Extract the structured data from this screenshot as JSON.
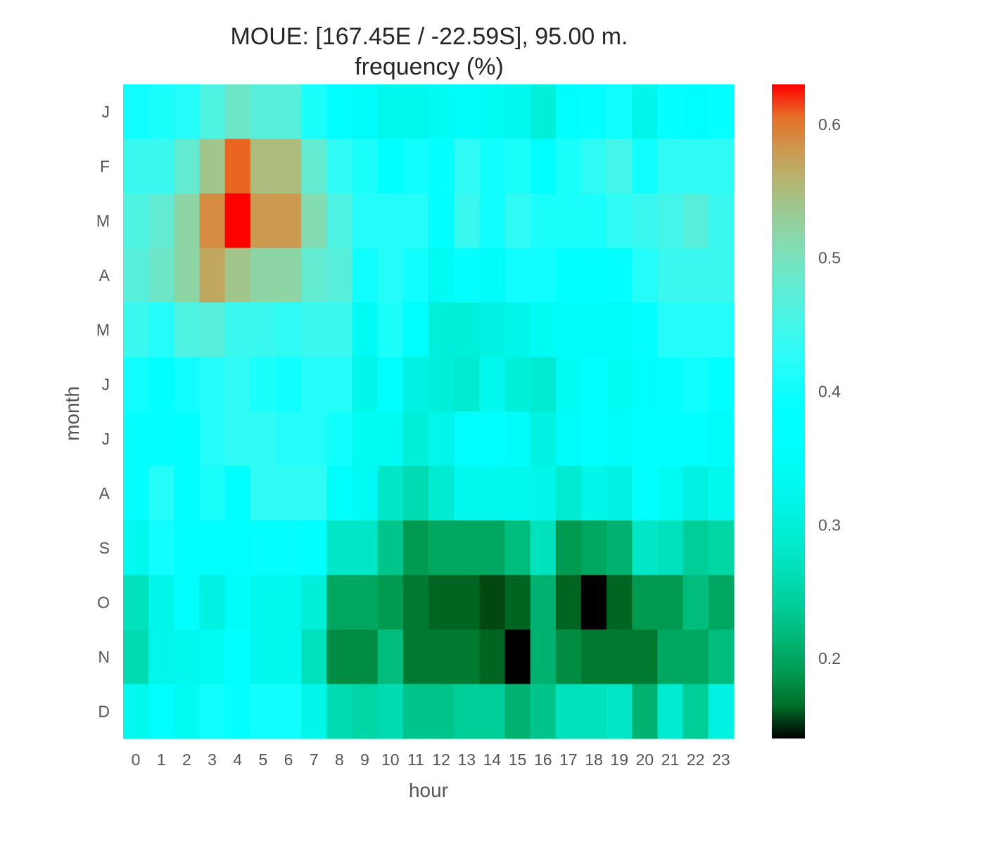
{
  "chart_data": {
    "type": "heatmap",
    "title": "MOUE: [167.45E / -22.59S], 95.00 m.",
    "subtitle": "frequency (%)",
    "xlabel": "hour",
    "ylabel": "month",
    "x": [
      "0",
      "1",
      "2",
      "3",
      "4",
      "5",
      "6",
      "7",
      "8",
      "9",
      "10",
      "11",
      "12",
      "13",
      "14",
      "15",
      "16",
      "17",
      "18",
      "19",
      "20",
      "21",
      "22",
      "23"
    ],
    "y": [
      "J",
      "F",
      "M",
      "A",
      "M",
      "J",
      "J",
      "A",
      "S",
      "O",
      "N",
      "D"
    ],
    "values": [
      [
        0.4,
        0.41,
        0.42,
        0.46,
        0.49,
        0.47,
        0.47,
        0.41,
        0.37,
        0.35,
        0.33,
        0.33,
        0.34,
        0.35,
        0.34,
        0.33,
        0.3,
        0.36,
        0.39,
        0.4,
        0.32,
        0.39,
        0.36,
        0.39
      ],
      [
        0.44,
        0.44,
        0.48,
        0.54,
        0.61,
        0.55,
        0.55,
        0.48,
        0.43,
        0.41,
        0.38,
        0.4,
        0.39,
        0.43,
        0.4,
        0.41,
        0.36,
        0.41,
        0.43,
        0.45,
        0.4,
        0.43,
        0.43,
        0.43
      ],
      [
        0.46,
        0.48,
        0.52,
        0.59,
        0.63,
        0.58,
        0.58,
        0.51,
        0.46,
        0.42,
        0.42,
        0.42,
        0.38,
        0.44,
        0.4,
        0.43,
        0.41,
        0.41,
        0.41,
        0.43,
        0.44,
        0.45,
        0.47,
        0.44
      ],
      [
        0.47,
        0.49,
        0.52,
        0.57,
        0.54,
        0.52,
        0.52,
        0.48,
        0.47,
        0.4,
        0.42,
        0.4,
        0.34,
        0.39,
        0.35,
        0.4,
        0.4,
        0.38,
        0.37,
        0.39,
        0.42,
        0.44,
        0.44,
        0.44
      ],
      [
        0.44,
        0.42,
        0.46,
        0.47,
        0.44,
        0.44,
        0.43,
        0.44,
        0.44,
        0.34,
        0.41,
        0.36,
        0.3,
        0.3,
        0.31,
        0.32,
        0.34,
        0.35,
        0.35,
        0.35,
        0.39,
        0.42,
        0.42,
        0.42
      ],
      [
        0.4,
        0.37,
        0.4,
        0.42,
        0.43,
        0.41,
        0.4,
        0.42,
        0.42,
        0.32,
        0.38,
        0.31,
        0.3,
        0.29,
        0.33,
        0.3,
        0.29,
        0.34,
        0.37,
        0.34,
        0.36,
        0.39,
        0.4,
        0.38
      ],
      [
        0.39,
        0.39,
        0.37,
        0.42,
        0.43,
        0.43,
        0.42,
        0.42,
        0.4,
        0.34,
        0.34,
        0.3,
        0.32,
        0.36,
        0.37,
        0.35,
        0.31,
        0.35,
        0.38,
        0.35,
        0.38,
        0.38,
        0.37,
        0.35
      ],
      [
        0.39,
        0.42,
        0.36,
        0.41,
        0.38,
        0.43,
        0.43,
        0.43,
        0.36,
        0.34,
        0.28,
        0.26,
        0.29,
        0.33,
        0.33,
        0.33,
        0.32,
        0.29,
        0.32,
        0.31,
        0.37,
        0.34,
        0.31,
        0.33
      ],
      [
        0.33,
        0.4,
        0.37,
        0.36,
        0.36,
        0.39,
        0.39,
        0.37,
        0.28,
        0.28,
        0.23,
        0.19,
        0.2,
        0.2,
        0.2,
        0.22,
        0.27,
        0.19,
        0.2,
        0.21,
        0.28,
        0.27,
        0.24,
        0.25
      ],
      [
        0.27,
        0.32,
        0.36,
        0.31,
        0.35,
        0.33,
        0.33,
        0.3,
        0.2,
        0.2,
        0.19,
        0.17,
        0.16,
        0.16,
        0.15,
        0.16,
        0.21,
        0.16,
        0.14,
        0.16,
        0.19,
        0.19,
        0.22,
        0.2
      ],
      [
        0.26,
        0.32,
        0.33,
        0.34,
        0.37,
        0.33,
        0.33,
        0.27,
        0.18,
        0.18,
        0.22,
        0.17,
        0.17,
        0.17,
        0.16,
        0.14,
        0.21,
        0.18,
        0.17,
        0.17,
        0.17,
        0.2,
        0.2,
        0.22
      ],
      [
        0.33,
        0.36,
        0.34,
        0.4,
        0.39,
        0.4,
        0.4,
        0.32,
        0.26,
        0.25,
        0.26,
        0.23,
        0.23,
        0.24,
        0.24,
        0.21,
        0.23,
        0.27,
        0.27,
        0.28,
        0.21,
        0.29,
        0.24,
        0.31
      ]
    ],
    "colorbar": {
      "min": 0.14,
      "max": 0.63,
      "ticks": [
        0.6,
        0.5,
        0.4,
        0.3,
        0.2
      ],
      "tick_labels": [
        "0.6",
        "0.5",
        "0.4",
        "0.3",
        "0.2"
      ],
      "colormap": "rainbow"
    },
    "grid": false
  }
}
